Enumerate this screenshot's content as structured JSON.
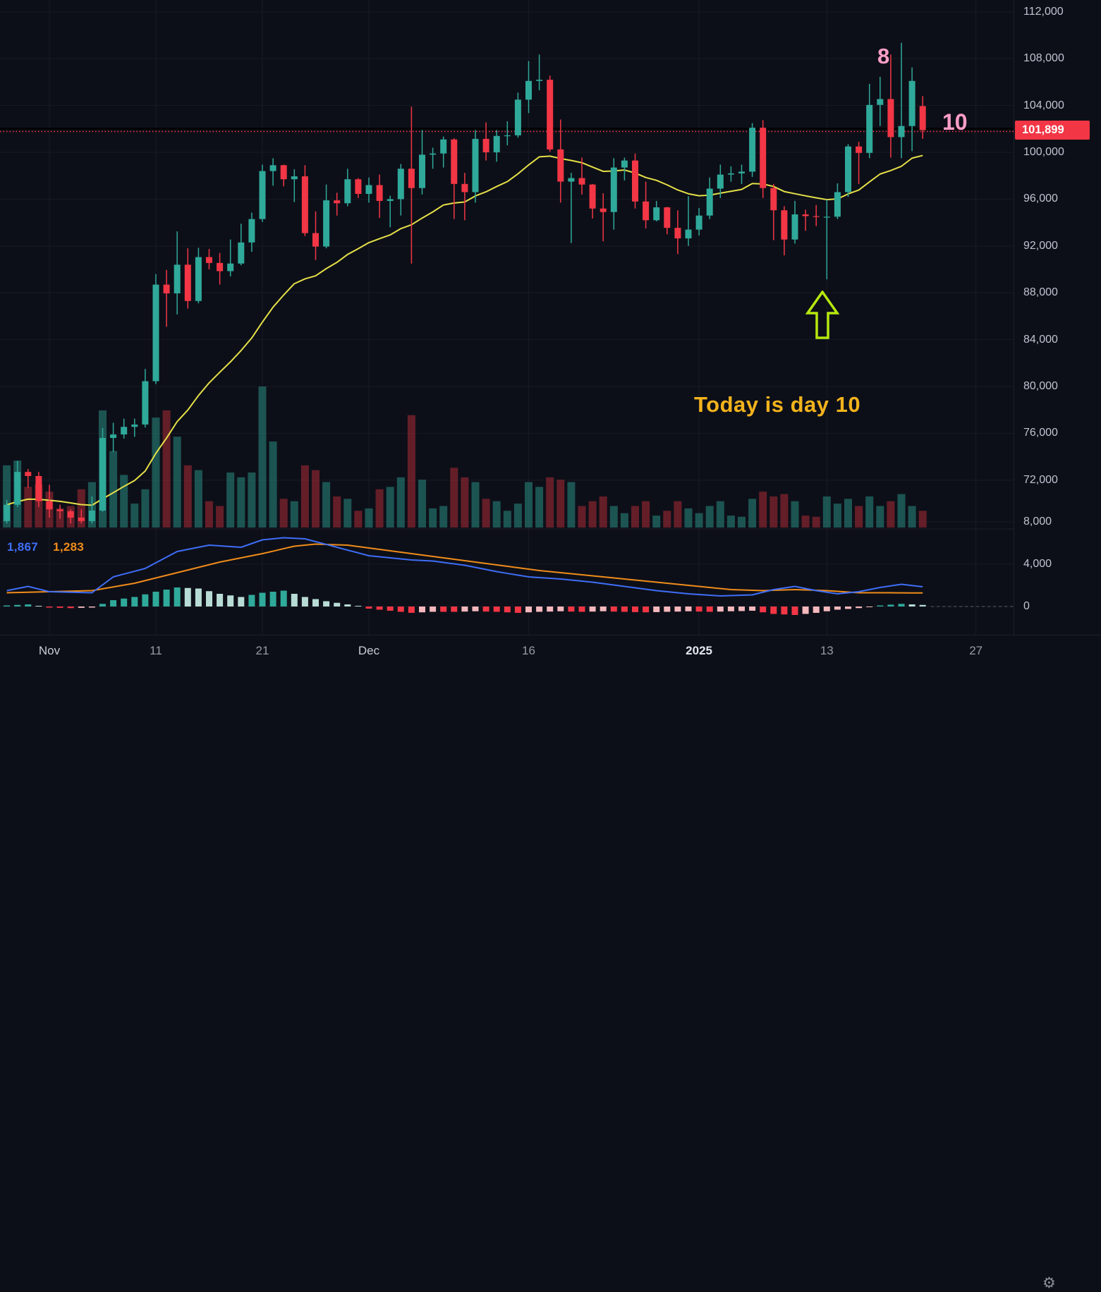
{
  "colors": {
    "background": "#0d0f18",
    "up": "#2fa99a",
    "down": "#f23645",
    "vol_up": "rgba(47,169,154,0.45)",
    "vol_down": "rgba(242,54,69,0.38)",
    "ma_line": "#e5e048",
    "indicator_blue": "#3e6ef7",
    "indicator_orange": "#ef8c1a",
    "hist_up": "#2fa99a",
    "hist_up_pale": "#b8dcd5",
    "hist_down": "#f23645",
    "hist_down_pale": "#f5b8bd",
    "price_tag_bg": "#f23645",
    "annotation_pink": "#ff9ec6",
    "annotation_yellow": "#f2b31c",
    "arrow_green": "#b6e80e",
    "hline_black": "#000000",
    "grid": "rgba(135,145,175,0.08)"
  },
  "chart_data": {
    "type": "candlestick",
    "price_axis": {
      "last_price": 101899,
      "last_price_label": "101,899",
      "ticks": [
        {
          "value": 112000,
          "label": "112,000"
        },
        {
          "value": 108000,
          "label": "108,000"
        },
        {
          "value": 104000,
          "label": "104,000"
        },
        {
          "value": 100000,
          "label": "100,000"
        },
        {
          "value": 96000,
          "label": "96,000"
        },
        {
          "value": 92000,
          "label": "92,000"
        },
        {
          "value": 88000,
          "label": "88,000"
        },
        {
          "value": 84000,
          "label": "84,000"
        },
        {
          "value": 80000,
          "label": "80,000"
        },
        {
          "value": 76000,
          "label": "76,000"
        },
        {
          "value": 72000,
          "label": "72,000"
        }
      ]
    },
    "indicator_axis": {
      "ticks": [
        {
          "value": 8000,
          "label": "8,000"
        },
        {
          "value": 4000,
          "label": "4,000"
        },
        {
          "value": 0,
          "label": "0"
        }
      ]
    },
    "time_axis": {
      "ticks": [
        {
          "label": "Nov",
          "index": 4,
          "style": "month"
        },
        {
          "label": "11",
          "index": 14,
          "style": ""
        },
        {
          "label": "21",
          "index": 24,
          "style": ""
        },
        {
          "label": "Dec",
          "index": 34,
          "style": "month"
        },
        {
          "label": "16",
          "index": 49,
          "style": ""
        },
        {
          "label": "2025",
          "index": 65,
          "style": "major"
        },
        {
          "label": "13",
          "index": 77,
          "style": ""
        },
        {
          "label": "27",
          "index": 91,
          "style": ""
        }
      ]
    },
    "horizontal_line_price": 101899,
    "columns": [
      "date",
      "open",
      "high",
      "low",
      "close",
      "volume"
    ],
    "candles": [
      [
        "Oct 28",
        68500,
        70300,
        68300,
        69900,
        5200
      ],
      [
        "Oct 29",
        69900,
        73650,
        69700,
        72700,
        5600
      ],
      [
        "Oct 30",
        72700,
        72950,
        71350,
        72350,
        3400
      ],
      [
        "Oct 31",
        72350,
        72700,
        69700,
        70200,
        3600
      ],
      [
        "Nov 1",
        70200,
        71600,
        68800,
        69500,
        3000
      ],
      [
        "Nov 2",
        69500,
        69900,
        68700,
        69350,
        1600
      ],
      [
        "Nov 3",
        69350,
        69500,
        68300,
        68800,
        1800
      ],
      [
        "Nov 4",
        68800,
        69500,
        68300,
        68500,
        3200
      ],
      [
        "Nov 5",
        68500,
        70600,
        68300,
        69400,
        3800
      ],
      [
        "Nov 6",
        69400,
        76450,
        69300,
        75600,
        9800
      ],
      [
        "Nov 7",
        75600,
        76900,
        74400,
        75900,
        6400
      ],
      [
        "Nov 8",
        75900,
        77250,
        75550,
        76550,
        4400
      ],
      [
        "Nov 9",
        76550,
        77250,
        75700,
        76750,
        2000
      ],
      [
        "Nov 10",
        76750,
        81500,
        76500,
        80450,
        3200
      ],
      [
        "Nov 11",
        80450,
        89600,
        80200,
        88700,
        9200
      ],
      [
        "Nov 12",
        88700,
        89950,
        85100,
        87950,
        9800
      ],
      [
        "Nov 13",
        87950,
        93250,
        86150,
        90400,
        7600
      ],
      [
        "Nov 14",
        90400,
        91800,
        86650,
        87300,
        5200
      ],
      [
        "Nov 15",
        87300,
        91850,
        87100,
        91050,
        4800
      ],
      [
        "Nov 16",
        91050,
        91750,
        90000,
        90550,
        2200
      ],
      [
        "Nov 17",
        90550,
        91400,
        88700,
        89850,
        1800
      ],
      [
        "Nov 18",
        89850,
        92550,
        89400,
        90500,
        4600
      ],
      [
        "Nov 19",
        90500,
        93900,
        90350,
        92300,
        4200
      ],
      [
        "Nov 20",
        92300,
        94850,
        91500,
        94300,
        4600
      ],
      [
        "Nov 21",
        94300,
        98950,
        94050,
        98400,
        11800
      ],
      [
        "Nov 22",
        98400,
        99500,
        97150,
        98900,
        7200
      ],
      [
        "Nov 23",
        98900,
        98950,
        97100,
        97700,
        2400
      ],
      [
        "Nov 24",
        97700,
        98550,
        95750,
        97950,
        2200
      ],
      [
        "Nov 25",
        97950,
        98900,
        92850,
        93100,
        5200
      ],
      [
        "Nov 26",
        93100,
        94950,
        90800,
        91950,
        4800
      ],
      [
        "Nov 27",
        91950,
        97250,
        91800,
        95900,
        3800
      ],
      [
        "Nov 28",
        95900,
        96550,
        94600,
        95650,
        2600
      ],
      [
        "Nov 29",
        95650,
        98600,
        95400,
        97700,
        2400
      ],
      [
        "Nov 30",
        97700,
        97800,
        96100,
        96450,
        1400
      ],
      [
        "Dec 1",
        96450,
        97850,
        95700,
        97200,
        1600
      ],
      [
        "Dec 2",
        97200,
        98100,
        94400,
        95850,
        3200
      ],
      [
        "Dec 3",
        95850,
        96300,
        93600,
        96000,
        3400
      ],
      [
        "Dec 4",
        96000,
        99000,
        94600,
        98600,
        4200
      ],
      [
        "Dec 5",
        98600,
        103900,
        90500,
        96950,
        9400
      ],
      [
        "Dec 6",
        96950,
        101900,
        96400,
        99800,
        4000
      ],
      [
        "Dec 7",
        99800,
        100400,
        98600,
        99900,
        1600
      ],
      [
        "Dec 8",
        99900,
        101350,
        98700,
        101100,
        1800
      ],
      [
        "Dec 9",
        101100,
        101200,
        94300,
        97300,
        5000
      ],
      [
        "Dec 10",
        97300,
        98250,
        94200,
        96600,
        4200
      ],
      [
        "Dec 11",
        96600,
        101900,
        95700,
        101150,
        3800
      ],
      [
        "Dec 12",
        101150,
        102550,
        99300,
        100000,
        2400
      ],
      [
        "Dec 13",
        100000,
        101900,
        99200,
        101400,
        2200
      ],
      [
        "Dec 14",
        101400,
        102650,
        100600,
        101450,
        1400
      ],
      [
        "Dec 15",
        101450,
        105100,
        101250,
        104500,
        2000
      ],
      [
        "Dec 16",
        104500,
        107800,
        103350,
        106100,
        3800
      ],
      [
        "Dec 17",
        106100,
        108350,
        105300,
        106200,
        3400
      ],
      [
        "Dec 18",
        106200,
        106550,
        100050,
        100250,
        4200
      ],
      [
        "Dec 19",
        100250,
        102800,
        95700,
        97500,
        4000
      ],
      [
        "Dec 20",
        97500,
        98250,
        92250,
        97800,
        3800
      ],
      [
        "Dec 21",
        97800,
        99550,
        96400,
        97250,
        1800
      ],
      [
        "Dec 22",
        97250,
        97300,
        94350,
        95200,
        2200
      ],
      [
        "Dec 23",
        95200,
        96500,
        92400,
        94900,
        2600
      ],
      [
        "Dec 24",
        94900,
        99500,
        93400,
        98700,
        1800
      ],
      [
        "Dec 25",
        98700,
        99550,
        97600,
        99300,
        1200
      ],
      [
        "Dec 26",
        99300,
        99900,
        95200,
        95800,
        1800
      ],
      [
        "Dec 27",
        95800,
        97500,
        93500,
        94200,
        2200
      ],
      [
        "Dec 28",
        94200,
        95850,
        94100,
        95300,
        1000
      ],
      [
        "Dec 29",
        95300,
        95350,
        93000,
        93550,
        1400
      ],
      [
        "Dec 30",
        93550,
        95050,
        91300,
        92650,
        2200
      ],
      [
        "Dec 31",
        92650,
        96250,
        92000,
        93400,
        1600
      ],
      [
        "Jan 1",
        93400,
        95250,
        92900,
        94600,
        1200
      ],
      [
        "Jan 2",
        94600,
        97850,
        94300,
        96900,
        1800
      ],
      [
        "Jan 3",
        96900,
        98950,
        96100,
        98100,
        2200
      ],
      [
        "Jan 4",
        98100,
        98800,
        97500,
        98200,
        1000
      ],
      [
        "Jan 5",
        98200,
        98950,
        97300,
        98350,
        900
      ],
      [
        "Jan 6",
        98350,
        102500,
        97900,
        102100,
        2400
      ],
      [
        "Jan 7",
        102100,
        102750,
        96100,
        96950,
        3000
      ],
      [
        "Jan 8",
        96950,
        97300,
        92500,
        95050,
        2600
      ],
      [
        "Jan 9",
        95050,
        95400,
        91200,
        92550,
        2800
      ],
      [
        "Jan 10",
        92550,
        95850,
        92200,
        94700,
        2200
      ],
      [
        "Jan 11",
        94700,
        95100,
        93300,
        94550,
        1000
      ],
      [
        "Jan 12",
        94550,
        95500,
        93700,
        94500,
        900
      ],
      [
        "Jan 13",
        94500,
        95950,
        89150,
        94500,
        2600
      ],
      [
        "Jan 14",
        94500,
        97350,
        94300,
        96600,
        2000
      ],
      [
        "Jan 15",
        96600,
        100700,
        96200,
        100500,
        2400
      ],
      [
        "Jan 16",
        100500,
        100900,
        97300,
        99950,
        1800
      ],
      [
        "Jan 17",
        99950,
        105850,
        99500,
        104050,
        2600
      ],
      [
        "Jan 18",
        104050,
        106450,
        102250,
        104550,
        1800
      ],
      [
        "Jan 19",
        104550,
        108350,
        99550,
        101300,
        2200
      ],
      [
        "Jan 20",
        101300,
        109350,
        99500,
        102250,
        2800
      ],
      [
        "Jan 21",
        102250,
        107250,
        100100,
        106100,
        1800
      ],
      [
        "Jan 22",
        103950,
        104800,
        101150,
        101899,
        1400
      ]
    ],
    "indicator": {
      "readout": {
        "blue": "1,867",
        "orange": "1,283"
      },
      "blue": [
        1500,
        1700,
        1900,
        1650,
        1400,
        1375,
        1350,
        1325,
        1300,
        2050,
        2800,
        3070,
        3330,
        3600,
        4130,
        4670,
        5200,
        5400,
        5600,
        5800,
        5730,
        5670,
        5600,
        5950,
        6300,
        6400,
        6500,
        6450,
        6400,
        6130,
        5870,
        5600,
        5330,
        5070,
        4800,
        4700,
        4600,
        4500,
        4400,
        4350,
        4300,
        4170,
        4030,
        3900,
        3700,
        3500,
        3300,
        3130,
        2970,
        2800,
        2730,
        2670,
        2600,
        2500,
        2400,
        2300,
        2170,
        2030,
        1900,
        1770,
        1630,
        1500,
        1400,
        1300,
        1200,
        1130,
        1070,
        1000,
        1030,
        1070,
        1100,
        1350,
        1600,
        1750,
        1900,
        1700,
        1500,
        1350,
        1200,
        1300,
        1400,
        1600,
        1800,
        1950,
        2100,
        1980,
        1867
      ],
      "orange": [
        1300,
        1325,
        1350,
        1375,
        1400,
        1425,
        1450,
        1475,
        1500,
        1675,
        1850,
        2025,
        2200,
        2450,
        2700,
        2950,
        3200,
        3450,
        3700,
        3950,
        4200,
        4400,
        4600,
        4800,
        5000,
        5230,
        5470,
        5700,
        5800,
        5900,
        5870,
        5830,
        5800,
        5670,
        5530,
        5400,
        5270,
        5130,
        5000,
        4870,
        4730,
        4600,
        4470,
        4330,
        4200,
        4070,
        3930,
        3800,
        3670,
        3530,
        3400,
        3300,
        3200,
        3100,
        3000,
        2900,
        2800,
        2700,
        2600,
        2500,
        2400,
        2300,
        2200,
        2100,
        2000,
        1900,
        1800,
        1700,
        1600,
        1570,
        1530,
        1500,
        1530,
        1570,
        1600,
        1570,
        1530,
        1500,
        1430,
        1370,
        1300,
        1300,
        1300,
        1300,
        1290,
        1287,
        1283
      ],
      "hist": [
        100,
        150,
        200,
        50,
        -100,
        -125,
        -150,
        -125,
        -100,
        250,
        600,
        750,
        900,
        1150,
        1400,
        1600,
        1800,
        1750,
        1700,
        1450,
        1200,
        1050,
        900,
        1100,
        1300,
        1400,
        1500,
        1200,
        900,
        700,
        500,
        350,
        200,
        0,
        -200,
        -300,
        -400,
        -500,
        -600,
        -550,
        -500,
        -500,
        -500,
        -480,
        -450,
        -480,
        -500,
        -550,
        -600,
        -550,
        -500,
        -480,
        -450,
        -480,
        -500,
        -480,
        -450,
        -480,
        -500,
        -530,
        -550,
        -530,
        -500,
        -480,
        -450,
        -480,
        -500,
        -480,
        -450,
        -430,
        -400,
        -550,
        -700,
        -750,
        -800,
        -700,
        -600,
        -450,
        -300,
        -230,
        -150,
        -30,
        100,
        180,
        250,
        200,
        150
      ]
    }
  },
  "annotations": {
    "label_8": "8",
    "label_10": "10",
    "today_text": "Today is day 10",
    "arrow_icon": "up-arrow"
  },
  "footer": {
    "gear_icon": "settings"
  }
}
